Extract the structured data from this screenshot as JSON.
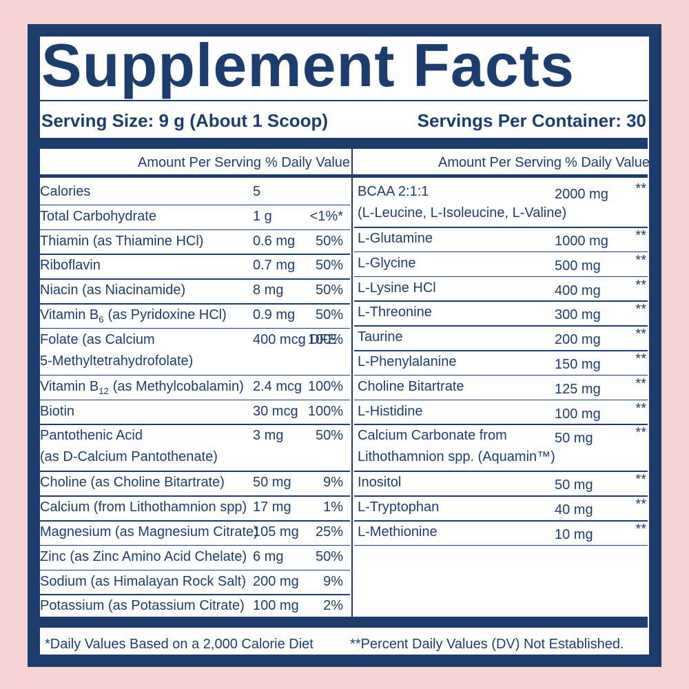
{
  "header": {
    "title": "Supplement Facts",
    "serving_size": "Serving Size: 9 g (About 1 Scoop)",
    "servings_per_container": "Servings Per Container: 30"
  },
  "columns": [
    {
      "amount_header": "Amount Per Serving",
      "dv_header": "% Daily Value",
      "rows": [
        {
          "name": "Calories",
          "amount": "5"
        },
        {
          "name": "Total Carbohydrate",
          "amount": "1 g",
          "dv": "<1%*"
        },
        {
          "name": "Thiamin (as Thiamine HCl)",
          "amount": "0.6 mg",
          "dv": "50%"
        },
        {
          "name": "Riboflavin",
          "amount": "0.7 mg",
          "dv": "50%"
        },
        {
          "name": "Niacin (as Niacinamide)",
          "amount": "8 mg",
          "dv": "50%"
        },
        {
          "name": "Vitamin B",
          "sub": "6",
          "name_rest": "(as Pyridoxine HCl)",
          "amount": "0.9 mg",
          "dv": "50%"
        },
        {
          "name": "Folate (as Calcium",
          "name2": "5-Methyltetrahydrofolate)",
          "amount": "400 mcg DFE",
          "dv": "100%"
        },
        {
          "name": "Vitamin B",
          "sub": "12",
          "name_rest": "(as Methylcobalamin)",
          "amount": "2.4 mcg",
          "dv": "100%"
        },
        {
          "name": "Biotin",
          "amount": "30 mcg",
          "dv": "100%"
        },
        {
          "name": "Pantothenic Acid",
          "name2": "(as D-Calcium Pantothenate)",
          "amount": "3 mg",
          "dv": "50%"
        },
        {
          "name": "Choline (as Choline Bitartrate)",
          "amount": "50 mg",
          "dv": "9%"
        },
        {
          "name": "Calcium (from Lithothamnion spp)",
          "amount": "17 mg",
          "dv": "1%"
        },
        {
          "name": "Magnesium (as Magnesium Citrate)",
          "amount": "105 mg",
          "dv": "25%"
        },
        {
          "name": "Zinc (as Zinc Amino Acid Chelate)",
          "amount": "6 mg",
          "dv": "50%"
        },
        {
          "name": "Sodium (as Himalayan Rock Salt)",
          "amount": "200 mg",
          "dv": "9%"
        },
        {
          "name": "Potassium (as Potassium Citrate)",
          "amount": "100 mg",
          "dv": "2%"
        }
      ]
    },
    {
      "amount_header": "Amount Per Serving",
      "dv_header": "% Daily Value",
      "rows": [
        {
          "name": "BCAA 2:1:1",
          "name2": "(L-Leucine, L-Isoleucine, L-Valine)",
          "amount": "2000 mg",
          "dv": "**"
        },
        {
          "name": "L-Glutamine",
          "amount": "1000 mg",
          "dv": "**"
        },
        {
          "name": "L-Glycine",
          "amount": "500 mg",
          "dv": "**"
        },
        {
          "name": "L-Lysine HCl",
          "amount": "400 mg",
          "dv": "**"
        },
        {
          "name": "L-Threonine",
          "amount": "300 mg",
          "dv": "**"
        },
        {
          "name": "Taurine",
          "amount": "200 mg",
          "dv": "**"
        },
        {
          "name": "L-Phenylalanine",
          "amount": "150 mg",
          "dv": "**"
        },
        {
          "name": "Choline Bitartrate",
          "amount": "125 mg",
          "dv": "**"
        },
        {
          "name": "L-Histidine",
          "amount": "100 mg",
          "dv": "**"
        },
        {
          "name": "Calcium Carbonate from",
          "name2": "Lithothamnion spp. (Aquamin™)",
          "amount": "50 mg",
          "dv": "**"
        },
        {
          "name": "Inositol",
          "amount": "50 mg",
          "dv": "**"
        },
        {
          "name": "L-Tryptophan",
          "amount": "40 mg",
          "dv": "**"
        },
        {
          "name": "L-Methionine",
          "amount": "10 mg",
          "dv": "**"
        }
      ]
    }
  ],
  "footnotes": [
    "*Daily Values Based on a 2,000 Calorie Diet",
    "**Percent Daily Values (DV) Not Established."
  ]
}
